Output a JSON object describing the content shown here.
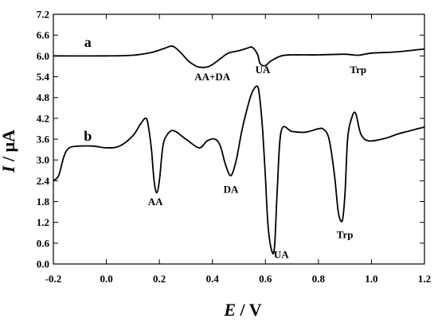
{
  "chart_data": {
    "type": "line",
    "title": "",
    "xlabel": {
      "symbol": "E",
      "unit": " / V"
    },
    "ylabel": {
      "symbol": "I",
      "unit": " / μA"
    },
    "xlim": [
      -0.2,
      1.2
    ],
    "ylim": [
      0.0,
      7.2
    ],
    "xticks": [
      "-0.2",
      "0.0",
      "0.2",
      "0.4",
      "0.6",
      "0.8",
      "1.0",
      "1.2"
    ],
    "yticks": [
      "0.0",
      "0.6",
      "1.2",
      "1.8",
      "2.4",
      "3.0",
      "3.6",
      "4.2",
      "4.8",
      "5.4",
      "6.0",
      "6.6",
      "7.2"
    ],
    "grid": false,
    "series": [
      {
        "name": "a",
        "color": "#000000",
        "x": [
          -0.2,
          0.0,
          0.1,
          0.17,
          0.22,
          0.25,
          0.28,
          0.31,
          0.34,
          0.36,
          0.38,
          0.4,
          0.43,
          0.46,
          0.5,
          0.53,
          0.55,
          0.57,
          0.58,
          0.6,
          0.62,
          0.66,
          0.7,
          0.8,
          0.9,
          0.95,
          1.0,
          1.1,
          1.2
        ],
        "y": [
          6.0,
          6.0,
          6.02,
          6.1,
          6.22,
          6.28,
          6.1,
          5.85,
          5.7,
          5.67,
          5.68,
          5.75,
          5.92,
          6.08,
          6.15,
          6.22,
          6.25,
          6.05,
          5.78,
          5.72,
          5.85,
          6.0,
          6.03,
          6.03,
          6.05,
          6.02,
          6.08,
          6.12,
          6.2
        ]
      },
      {
        "name": "b",
        "color": "#000000",
        "x": [
          -0.2,
          -0.18,
          -0.16,
          -0.14,
          -0.1,
          -0.05,
          0.0,
          0.05,
          0.1,
          0.13,
          0.15,
          0.16,
          0.17,
          0.18,
          0.19,
          0.2,
          0.21,
          0.22,
          0.25,
          0.3,
          0.35,
          0.38,
          0.41,
          0.43,
          0.45,
          0.47,
          0.49,
          0.51,
          0.53,
          0.55,
          0.57,
          0.58,
          0.59,
          0.6,
          0.61,
          0.625,
          0.635,
          0.645,
          0.66,
          0.7,
          0.75,
          0.8,
          0.82,
          0.84,
          0.86,
          0.875,
          0.89,
          0.9,
          0.91,
          0.925,
          0.94,
          0.96,
          0.99,
          1.05,
          1.1,
          1.15,
          1.2
        ],
        "y": [
          2.4,
          2.55,
          3.1,
          3.35,
          3.4,
          3.4,
          3.35,
          3.4,
          3.7,
          4.05,
          4.2,
          3.9,
          3.3,
          2.4,
          2.05,
          2.4,
          3.2,
          3.6,
          3.85,
          3.6,
          3.35,
          3.55,
          3.6,
          3.4,
          2.85,
          2.55,
          3.0,
          3.8,
          4.45,
          4.95,
          5.12,
          4.7,
          3.8,
          2.5,
          1.1,
          0.35,
          0.55,
          2.2,
          3.85,
          3.82,
          3.8,
          3.9,
          3.88,
          3.6,
          2.6,
          1.5,
          1.25,
          2.0,
          3.6,
          4.2,
          4.35,
          3.75,
          3.55,
          3.62,
          3.75,
          3.85,
          3.95
        ]
      }
    ],
    "annotations": [
      {
        "text": "AA+DA",
        "x": 0.4,
        "y": 5.3
      },
      {
        "text": "UA",
        "x": 0.59,
        "y": 5.5
      },
      {
        "text": "Trp",
        "x": 0.95,
        "y": 5.5
      },
      {
        "text": "AA",
        "x": 0.185,
        "y": 1.7
      },
      {
        "text": "DA",
        "x": 0.47,
        "y": 2.05
      },
      {
        "text": "UA",
        "x": 0.66,
        "y": 0.17
      },
      {
        "text": "Trp",
        "x": 0.9,
        "y": 0.75
      }
    ],
    "trace_labels": [
      {
        "text": "a",
        "x": -0.07,
        "y": 6.26
      },
      {
        "text": "b",
        "x": -0.07,
        "y": 3.55
      }
    ]
  }
}
